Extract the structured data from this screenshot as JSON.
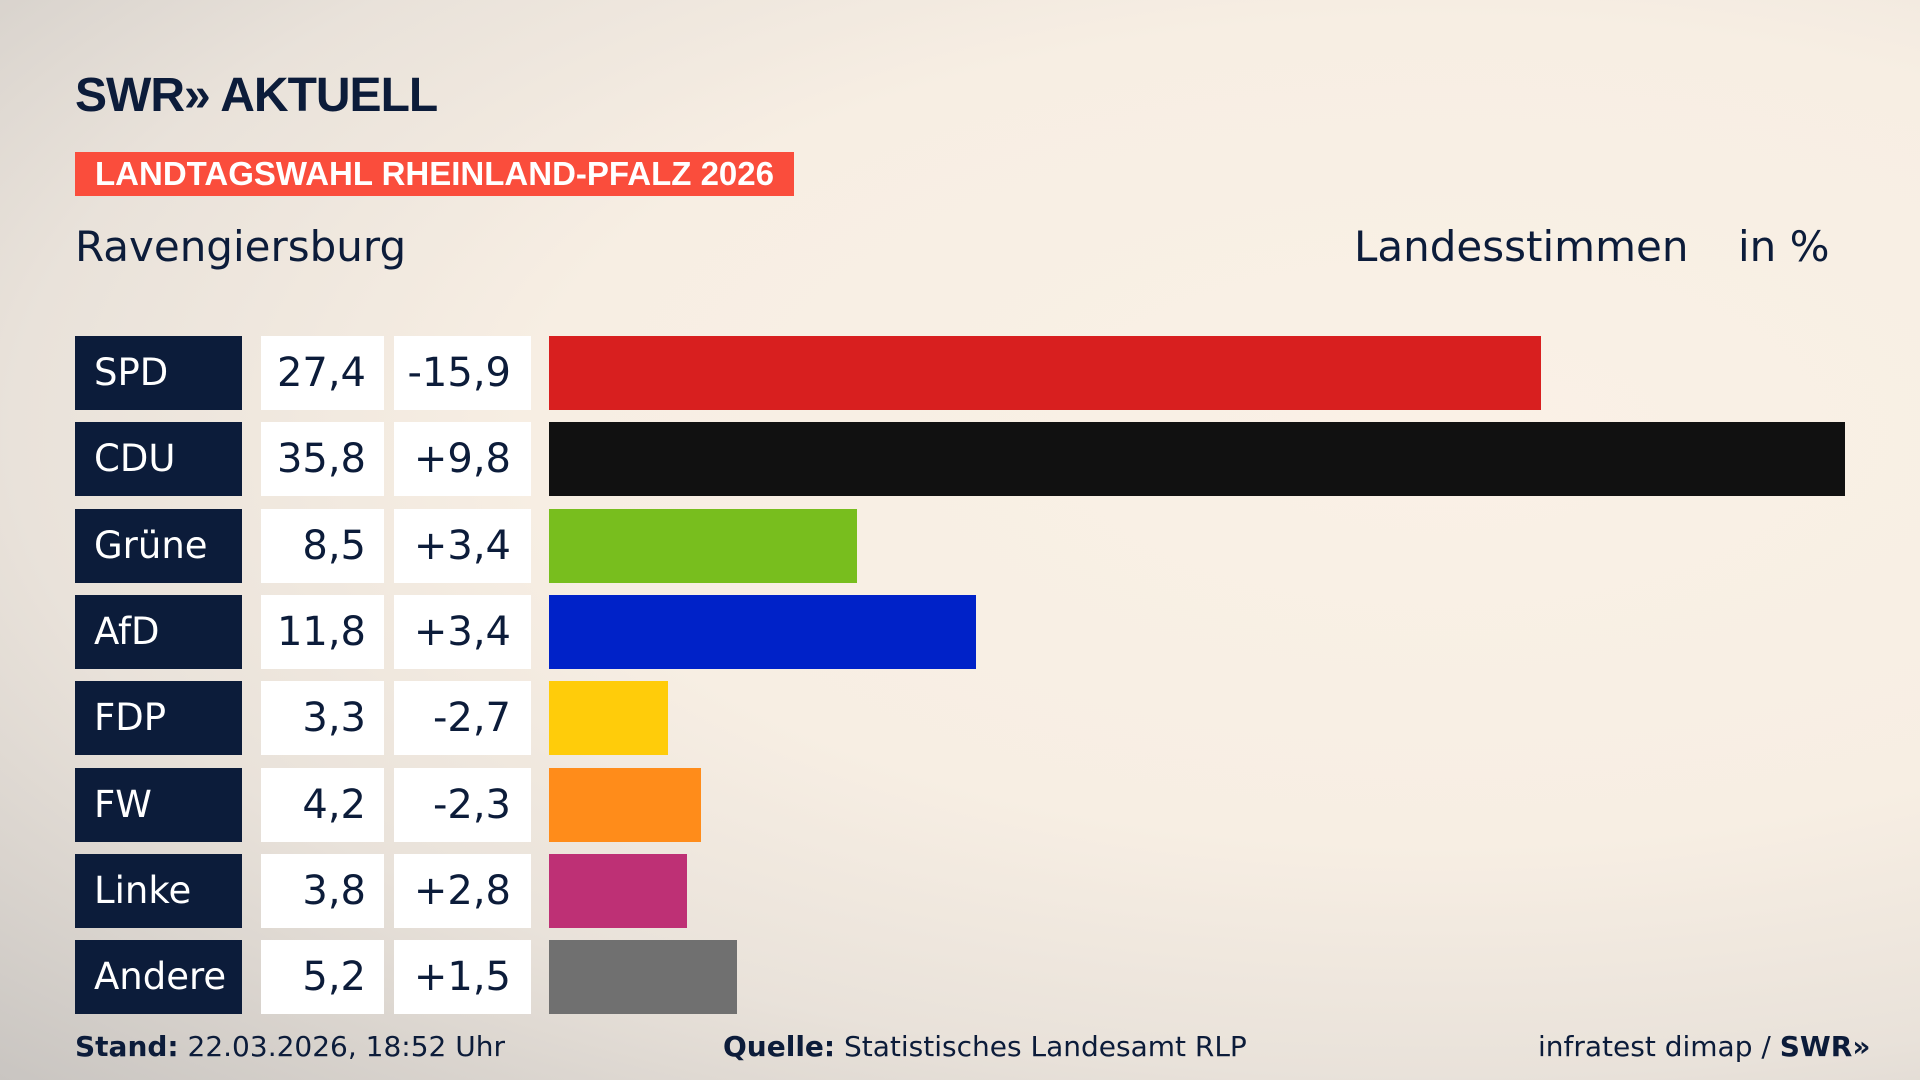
{
  "header": {
    "logo": "SWR» AKTUELL",
    "tag": "LANDTAGSWAHL RHEINLAND-PFALZ 2026",
    "location": "Ravengiersburg",
    "vote_type": "Landesstimmen",
    "unit": "in %"
  },
  "chart_data": {
    "type": "bar",
    "orientation": "horizontal",
    "xlim": [
      0,
      35.8
    ],
    "categories": [
      "SPD",
      "CDU",
      "Grüne",
      "AfD",
      "FDP",
      "FW",
      "Linke",
      "Andere"
    ],
    "values": [
      27.4,
      35.8,
      8.5,
      11.8,
      3.3,
      4.2,
      3.8,
      5.2
    ],
    "value_labels": [
      "27,4",
      "35,8",
      "8,5",
      "11,8",
      "3,3",
      "4,2",
      "3,8",
      "5,2"
    ],
    "diff_labels": [
      "-15,9",
      "+9,8",
      "+3,4",
      "+3,4",
      "-2,7",
      "-2,3",
      "+2,8",
      "+1,5"
    ],
    "colors": [
      "#d81f1f",
      "#111111",
      "#78be1e",
      "#0022c8",
      "#ffcc0a",
      "#ff8c1a",
      "#be3075",
      "#707070"
    ]
  },
  "footer": {
    "stand_label": "Stand:",
    "stand_value": "22.03.2026, 18:52 Uhr",
    "source_label": "Quelle:",
    "source_value": "Statistisches Landesamt RLP",
    "credit": "infratest dimap / ",
    "credit_logo": "SWR»"
  }
}
